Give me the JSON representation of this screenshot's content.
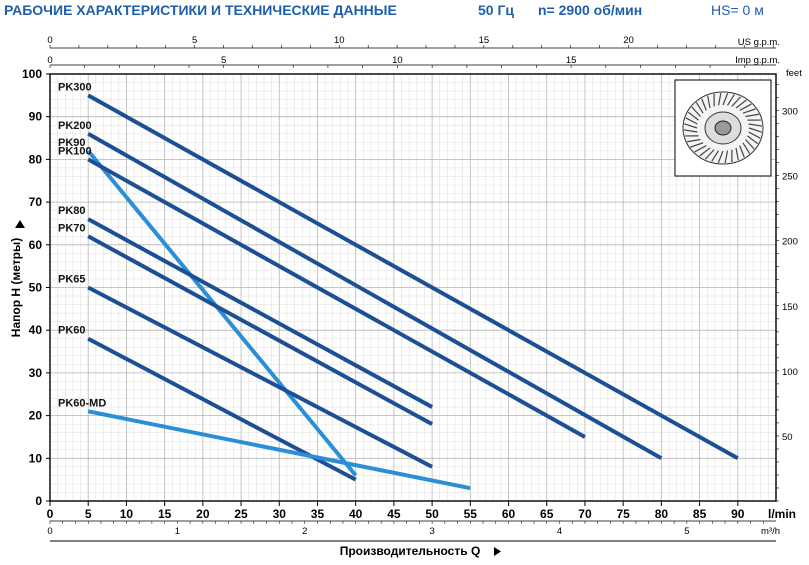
{
  "header": {
    "title": "РАБОЧИЕ ХАРАКТЕРИСТИКИ И ТЕХНИЧЕСКИЕ ДАННЫЕ",
    "frequency": "50 Гц",
    "speed": "n= 2900 об/мин",
    "hs": "HS= 0 м"
  },
  "colors": {
    "dark_series": "#1c4f94",
    "light_series": "#2a8fd6",
    "grid": "#c8c8c8",
    "header": "#1f5fa8"
  },
  "icons": {
    "impeller": "impeller-illustration"
  },
  "chart_data": {
    "type": "line",
    "title": "",
    "xlabel": "Производительность Q",
    "ylabel": "Напор H (метры)",
    "x_unit": "l/min",
    "xlim": [
      0,
      95
    ],
    "ylim": [
      0,
      100
    ],
    "x_ticks": [
      0,
      5,
      10,
      15,
      20,
      25,
      30,
      35,
      40,
      45,
      50,
      55,
      60,
      65,
      70,
      75,
      80,
      85,
      90
    ],
    "y_ticks": [
      0,
      10,
      20,
      30,
      40,
      50,
      60,
      70,
      80,
      90,
      100
    ],
    "grid": true,
    "secondary_axes": {
      "us_gpm": {
        "label": "US g.p.m.",
        "ticks": [
          0,
          5,
          10,
          15,
          20
        ]
      },
      "imp_gpm": {
        "label": "Imp g.p.m.",
        "ticks": [
          0,
          5,
          10,
          15
        ]
      },
      "feet": {
        "label": "feet",
        "ticks": [
          50,
          100,
          150,
          200,
          250,
          300
        ]
      },
      "m3h": {
        "label": "m³/h",
        "ticks": [
          0,
          1,
          2,
          3,
          4,
          5
        ]
      }
    },
    "series": [
      {
        "name": "PK300",
        "style": "dark",
        "x": [
          5,
          90
        ],
        "y": [
          95,
          10
        ]
      },
      {
        "name": "PK200",
        "style": "dark",
        "x": [
          5,
          80
        ],
        "y": [
          86,
          10
        ]
      },
      {
        "name": "PK90",
        "style": "light",
        "x": [
          5,
          40
        ],
        "y": [
          82,
          6
        ]
      },
      {
        "name": "PK100",
        "style": "dark",
        "x": [
          5,
          70
        ],
        "y": [
          80,
          15
        ]
      },
      {
        "name": "PK80",
        "style": "dark",
        "x": [
          5,
          50
        ],
        "y": [
          66,
          22
        ]
      },
      {
        "name": "PK70",
        "style": "dark",
        "x": [
          5,
          50
        ],
        "y": [
          62,
          18
        ]
      },
      {
        "name": "PK65",
        "style": "dark",
        "x": [
          5,
          50
        ],
        "y": [
          50,
          8
        ]
      },
      {
        "name": "PK60",
        "style": "dark",
        "x": [
          5,
          40
        ],
        "y": [
          38,
          5
        ]
      },
      {
        "name": "PK60-MD",
        "style": "light",
        "x": [
          5,
          55
        ],
        "y": [
          21,
          3
        ]
      }
    ]
  }
}
